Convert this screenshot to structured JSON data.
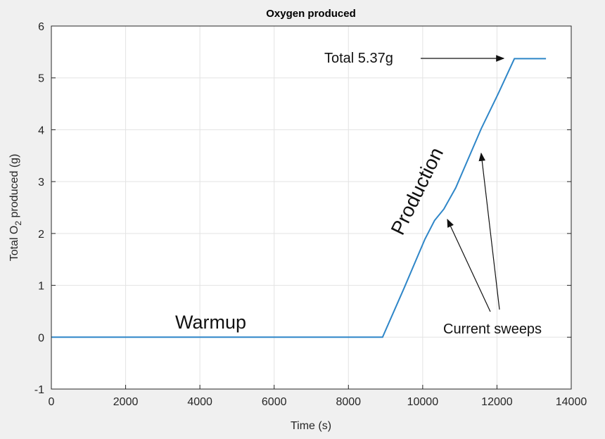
{
  "chart_data": {
    "type": "line",
    "title": "Oxygen produced",
    "xlabel": "Time (s)",
    "ylabel_parts": [
      "Total O",
      "2",
      " produced (g)"
    ],
    "xlim": [
      0,
      14000
    ],
    "ylim": [
      -1,
      6
    ],
    "xticks": [
      0,
      2000,
      4000,
      6000,
      8000,
      10000,
      12000,
      14000
    ],
    "yticks": [
      -1,
      0,
      1,
      2,
      3,
      4,
      5,
      6
    ],
    "grid": true,
    "series": [
      {
        "color": "#2e86c8",
        "x": [
          0,
          8920,
          9500,
          10060,
          10320,
          10570,
          10890,
          11575,
          12030,
          12470,
          13320
        ],
        "y": [
          0,
          0,
          0.95,
          1.89,
          2.25,
          2.47,
          2.88,
          4.02,
          4.69,
          5.37,
          5.37
        ]
      }
    ],
    "annotations": {
      "total": {
        "text": "Total 5.37g",
        "target": [
          12470,
          5.37
        ]
      },
      "production": {
        "text": "Production"
      },
      "warmup": {
        "text": "Warmup"
      },
      "sweeps": {
        "text": "Current sweeps",
        "targets": [
          [
            10570,
            2.25
          ],
          [
            11600,
            3.55
          ]
        ]
      }
    }
  }
}
